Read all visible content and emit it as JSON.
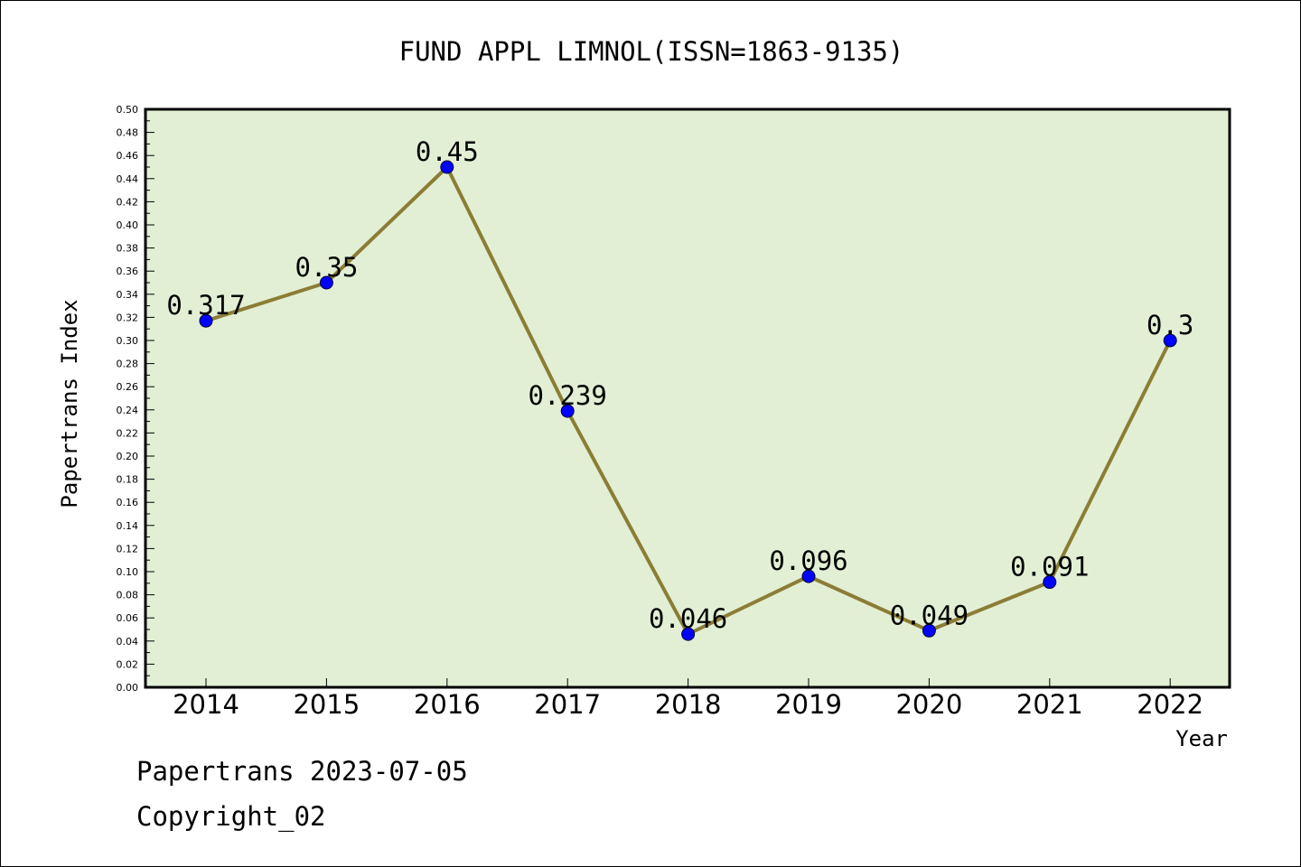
{
  "chart_data": {
    "type": "line",
    "title": "FUND APPL LIMNOL(ISSN=1863-9135)",
    "xlabel": "Year",
    "ylabel": "Papertrans Index",
    "categories": [
      "2014",
      "2015",
      "2016",
      "2017",
      "2018",
      "2019",
      "2020",
      "2021",
      "2022"
    ],
    "values": [
      0.317,
      0.35,
      0.45,
      0.239,
      0.046,
      0.096,
      0.049,
      0.091,
      0.3
    ],
    "value_labels": [
      "0.317",
      "0.35",
      "0.45",
      "0.239",
      "0.046",
      "0.096",
      "0.049",
      "0.091",
      "0.3"
    ],
    "ylim": [
      0,
      0.5
    ],
    "ytick_step": 0.02,
    "grid": false,
    "legend": "none",
    "colors": {
      "plot_background": "#e2efd5",
      "line": "#8b7d35",
      "marker": "#0000ff"
    }
  },
  "footer": {
    "line1": "Papertrans 2023-07-05",
    "line2": "Copyright_02"
  }
}
